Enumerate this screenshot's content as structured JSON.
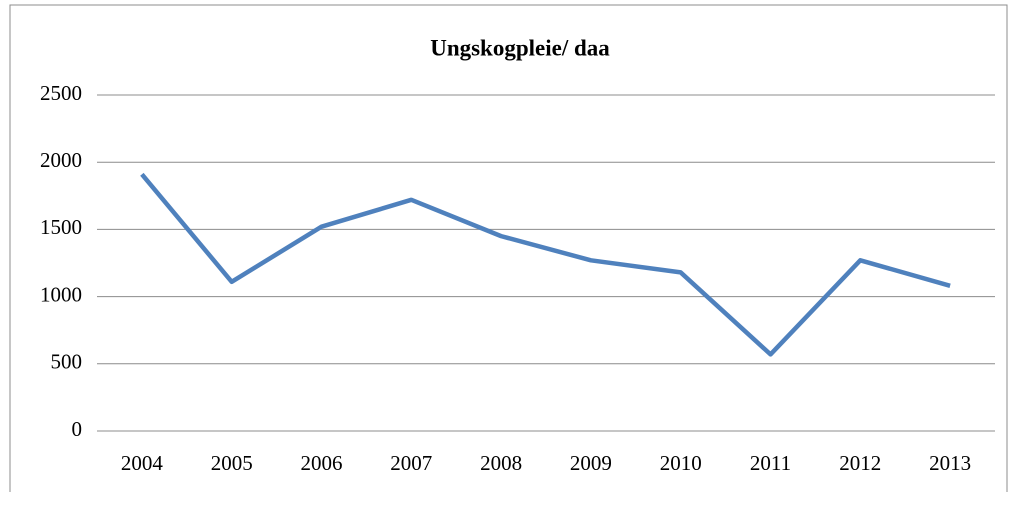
{
  "chart_data": {
    "type": "line",
    "title": "Ungskogpleie/ daa",
    "categories": [
      "2004",
      "2005",
      "2006",
      "2007",
      "2008",
      "2009",
      "2010",
      "2011",
      "2012",
      "2013"
    ],
    "series": [
      {
        "name": "Ungskogpleie/ daa",
        "color": "#4f81bd",
        "values": [
          1910,
          1110,
          1520,
          1720,
          1450,
          1270,
          1180,
          570,
          1270,
          1080
        ]
      }
    ],
    "ylim": [
      0,
      2500
    ],
    "yticks": [
      0,
      500,
      1000,
      1500,
      2000,
      2500
    ],
    "grid": true
  }
}
